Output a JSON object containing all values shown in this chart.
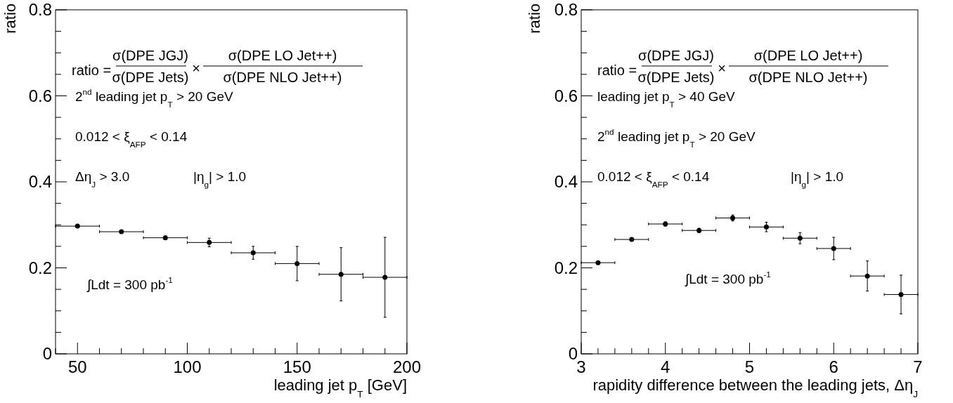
{
  "chart_data": [
    {
      "type": "scatter",
      "xlabel": "leading jet p$_{T}$ [GeV]",
      "ylabel": "ratio",
      "marker": "circle",
      "grid": false,
      "xlim": [
        40,
        200
      ],
      "ylim": [
        0,
        0.8
      ],
      "xticks": [
        {
          "value": 40,
          "label": null
        },
        50,
        {
          "value": 60,
          "label": null
        },
        {
          "value": 70,
          "label": null
        },
        {
          "value": 80,
          "label": null
        },
        {
          "value": 90,
          "label": null
        },
        100,
        {
          "value": 110,
          "label": null
        },
        {
          "value": 120,
          "label": null
        },
        {
          "value": 130,
          "label": null
        },
        {
          "value": 140,
          "label": null
        },
        150,
        {
          "value": 160,
          "label": null
        },
        {
          "value": 170,
          "label": null
        },
        {
          "value": 180,
          "label": null
        },
        {
          "value": 190,
          "label": null
        },
        200
      ],
      "yticks": [
        0,
        {
          "value": 0.05,
          "label": null
        },
        {
          "value": 0.1,
          "label": null
        },
        {
          "value": 0.15,
          "label": null
        },
        0.2,
        {
          "value": 0.25,
          "label": null
        },
        {
          "value": 0.3,
          "label": null
        },
        {
          "value": 0.35,
          "label": null
        },
        0.4,
        {
          "value": 0.45,
          "label": null
        },
        {
          "value": 0.5,
          "label": null
        },
        {
          "value": 0.55,
          "label": null
        },
        0.6,
        {
          "value": 0.65,
          "label": null
        },
        {
          "value": 0.7,
          "label": null
        },
        {
          "value": 0.75,
          "label": null
        },
        0.8
      ],
      "series": [
        {
          "color": "#000000",
          "x": [
            50,
            70,
            90,
            110,
            130,
            150,
            170,
            190
          ],
          "values": [
            0.297,
            0.284,
            0.27,
            0.259,
            0.235,
            0.21,
            0.185,
            0.178
          ],
          "errors": [
            null,
            0.002,
            0.004,
            0.01,
            0.015,
            0.04,
            0.062,
            0.093
          ],
          "xerrors": [
            10,
            10,
            10,
            10,
            10,
            10,
            10,
            10
          ]
        }
      ],
      "annotations": [
        "ratio =",
        "σ(DPE JGJ)",
        "σ(DPE Jets)",
        "×",
        "σ(DPE LO Jet++)",
        "σ(DPE NLO Jet++)",
        "2$^{nd}$ leading jet p$_{T}$ > 20 GeV",
        "0.012 < ξ$_{AFP}$ < 0.14",
        "Δη$_{J}$ > 3.0",
        "|η$_{g}$| > 1.0",
        "∫Ldt = 300 pb$^{-1}$"
      ]
    },
    {
      "type": "scatter",
      "xlabel": "rapidity difference between the leading jets, Δη$_{J}$",
      "ylabel": "ratio",
      "marker": "circle",
      "grid": false,
      "xlim": [
        3,
        7
      ],
      "ylim": [
        0,
        0.8
      ],
      "xticks": [
        3,
        {
          "value": 3.2,
          "label": null
        },
        {
          "value": 3.4,
          "label": null
        },
        {
          "value": 3.6,
          "label": null
        },
        {
          "value": 3.8,
          "label": null
        },
        4,
        {
          "value": 4.2,
          "label": null
        },
        {
          "value": 4.4,
          "label": null
        },
        {
          "value": 4.6,
          "label": null
        },
        {
          "value": 4.8,
          "label": null
        },
        5,
        {
          "value": 5.2,
          "label": null
        },
        {
          "value": 5.4,
          "label": null
        },
        {
          "value": 5.6,
          "label": null
        },
        {
          "value": 5.8,
          "label": null
        },
        6,
        {
          "value": 6.2,
          "label": null
        },
        {
          "value": 6.4,
          "label": null
        },
        {
          "value": 6.6,
          "label": null
        },
        {
          "value": 6.8,
          "label": null
        },
        7
      ],
      "yticks": [
        0,
        {
          "value": 0.05,
          "label": null
        },
        {
          "value": 0.1,
          "label": null
        },
        {
          "value": 0.15,
          "label": null
        },
        0.2,
        {
          "value": 0.25,
          "label": null
        },
        {
          "value": 0.3,
          "label": null
        },
        {
          "value": 0.35,
          "label": null
        },
        0.4,
        {
          "value": 0.45,
          "label": null
        },
        {
          "value": 0.5,
          "label": null
        },
        {
          "value": 0.55,
          "label": null
        },
        0.6,
        {
          "value": 0.65,
          "label": null
        },
        {
          "value": 0.7,
          "label": null
        },
        {
          "value": 0.75,
          "label": null
        },
        0.8
      ],
      "series": [
        {
          "color": "#000000",
          "x": [
            3.2,
            3.6,
            4.0,
            4.4,
            4.8,
            5.2,
            5.6,
            6.0,
            6.4,
            6.8
          ],
          "values": [
            0.212,
            0.266,
            0.302,
            0.287,
            0.316,
            0.295,
            0.269,
            0.245,
            0.181,
            0.138
          ],
          "errors": [
            0.003,
            0.004,
            0.005,
            0.005,
            0.007,
            0.011,
            0.013,
            0.026,
            0.035,
            0.045
          ],
          "xerrors": [
            0.2,
            0.2,
            0.2,
            0.2,
            0.2,
            0.2,
            0.2,
            0.2,
            0.2,
            0.2
          ]
        }
      ],
      "annotations": [
        "ratio =",
        "σ(DPE JGJ)",
        "σ(DPE Jets)",
        "×",
        "σ(DPE LO Jet++)",
        "σ(DPE NLO Jet++)",
        "leading jet p$_{T}$ > 40 GeV",
        "2$^{nd}$ leading jet p$_{T}$ > 20 GeV",
        "0.012 < ξ$_{AFP}$ < 0.14",
        "|η$_{g}$| > 1.0",
        "∫Ldt = 300 pb$^{-1}$"
      ]
    }
  ]
}
